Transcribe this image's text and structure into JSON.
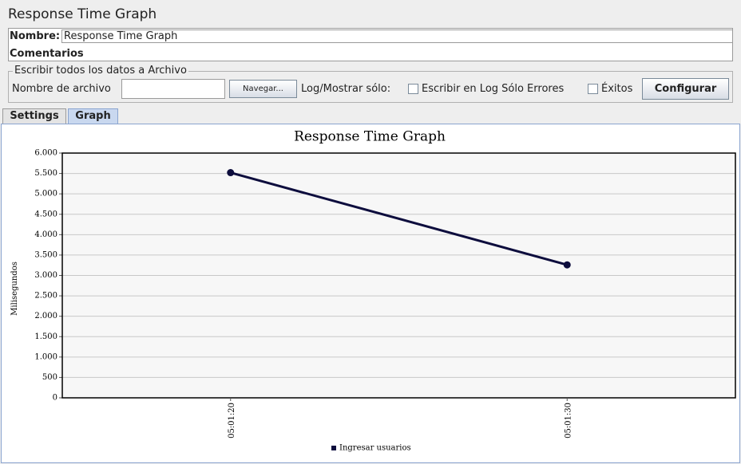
{
  "window": {
    "title": "Response Time Graph",
    "name_label": "Nombre:",
    "name_value": "Response Time Graph",
    "comments_label": "Comentarios",
    "file_group": "Escribir todos los datos a Archivo",
    "file_label": "Nombre de archivo",
    "browse_button": "Navegar...",
    "log_label": "Log/Mostrar sólo:",
    "errors_checkbox": "Escribir en Log Sólo Errores",
    "success_checkbox": "Éxitos",
    "configure_button": "Configurar",
    "tabs": [
      "Settings",
      "Graph"
    ]
  },
  "chart_data": {
    "type": "line",
    "title": "Response Time Graph",
    "y_label": "Milisegundos",
    "categories": [
      "05:01:20",
      "05:01:30"
    ],
    "series": [
      {
        "name": "Ingresar usuarios",
        "color": "#0d0d3d",
        "values": [
          5520,
          3260
        ]
      }
    ],
    "ylim": [
      0,
      6000
    ],
    "yticks": [
      0,
      500,
      {
        "value": 1000,
        "label": "1.000"
      },
      {
        "value": 1500,
        "label": "1.500"
      },
      {
        "value": 2000,
        "label": "2.000"
      },
      {
        "value": 2500,
        "label": "2.500"
      },
      {
        "value": 3000,
        "label": "3.000"
      },
      {
        "value": 3500,
        "label": "3.500"
      },
      {
        "value": 4000,
        "label": "4.000"
      },
      {
        "value": 4500,
        "label": "4.500"
      },
      {
        "value": 5000,
        "label": "5.000"
      },
      {
        "value": 5500,
        "label": "5.500"
      },
      {
        "value": 6000,
        "label": "6.000"
      }
    ],
    "grid": true
  }
}
